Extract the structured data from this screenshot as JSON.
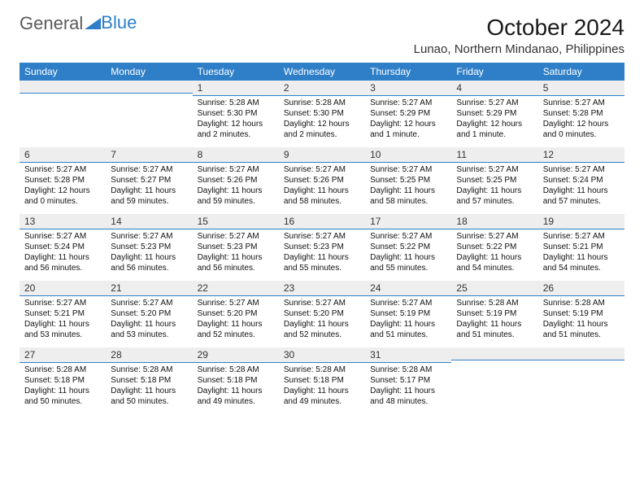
{
  "brand": {
    "name1": "General",
    "name2": "Blue"
  },
  "title": "October 2024",
  "location": "Lunao, Northern Mindanao, Philippines",
  "colors": {
    "header_bg": "#2f7fc8",
    "header_fg": "#ffffff",
    "daynum_bg": "#eeeeee",
    "rule": "#2f7fc8"
  },
  "day_labels": [
    "Sunday",
    "Monday",
    "Tuesday",
    "Wednesday",
    "Thursday",
    "Friday",
    "Saturday"
  ],
  "weeks": [
    [
      {
        "n": "",
        "sr": "",
        "ss": "",
        "dl": ""
      },
      {
        "n": "",
        "sr": "",
        "ss": "",
        "dl": ""
      },
      {
        "n": "1",
        "sr": "Sunrise: 5:28 AM",
        "ss": "Sunset: 5:30 PM",
        "dl": "Daylight: 12 hours and 2 minutes."
      },
      {
        "n": "2",
        "sr": "Sunrise: 5:28 AM",
        "ss": "Sunset: 5:30 PM",
        "dl": "Daylight: 12 hours and 2 minutes."
      },
      {
        "n": "3",
        "sr": "Sunrise: 5:27 AM",
        "ss": "Sunset: 5:29 PM",
        "dl": "Daylight: 12 hours and 1 minute."
      },
      {
        "n": "4",
        "sr": "Sunrise: 5:27 AM",
        "ss": "Sunset: 5:29 PM",
        "dl": "Daylight: 12 hours and 1 minute."
      },
      {
        "n": "5",
        "sr": "Sunrise: 5:27 AM",
        "ss": "Sunset: 5:28 PM",
        "dl": "Daylight: 12 hours and 0 minutes."
      }
    ],
    [
      {
        "n": "6",
        "sr": "Sunrise: 5:27 AM",
        "ss": "Sunset: 5:28 PM",
        "dl": "Daylight: 12 hours and 0 minutes."
      },
      {
        "n": "7",
        "sr": "Sunrise: 5:27 AM",
        "ss": "Sunset: 5:27 PM",
        "dl": "Daylight: 11 hours and 59 minutes."
      },
      {
        "n": "8",
        "sr": "Sunrise: 5:27 AM",
        "ss": "Sunset: 5:26 PM",
        "dl": "Daylight: 11 hours and 59 minutes."
      },
      {
        "n": "9",
        "sr": "Sunrise: 5:27 AM",
        "ss": "Sunset: 5:26 PM",
        "dl": "Daylight: 11 hours and 58 minutes."
      },
      {
        "n": "10",
        "sr": "Sunrise: 5:27 AM",
        "ss": "Sunset: 5:25 PM",
        "dl": "Daylight: 11 hours and 58 minutes."
      },
      {
        "n": "11",
        "sr": "Sunrise: 5:27 AM",
        "ss": "Sunset: 5:25 PM",
        "dl": "Daylight: 11 hours and 57 minutes."
      },
      {
        "n": "12",
        "sr": "Sunrise: 5:27 AM",
        "ss": "Sunset: 5:24 PM",
        "dl": "Daylight: 11 hours and 57 minutes."
      }
    ],
    [
      {
        "n": "13",
        "sr": "Sunrise: 5:27 AM",
        "ss": "Sunset: 5:24 PM",
        "dl": "Daylight: 11 hours and 56 minutes."
      },
      {
        "n": "14",
        "sr": "Sunrise: 5:27 AM",
        "ss": "Sunset: 5:23 PM",
        "dl": "Daylight: 11 hours and 56 minutes."
      },
      {
        "n": "15",
        "sr": "Sunrise: 5:27 AM",
        "ss": "Sunset: 5:23 PM",
        "dl": "Daylight: 11 hours and 56 minutes."
      },
      {
        "n": "16",
        "sr": "Sunrise: 5:27 AM",
        "ss": "Sunset: 5:23 PM",
        "dl": "Daylight: 11 hours and 55 minutes."
      },
      {
        "n": "17",
        "sr": "Sunrise: 5:27 AM",
        "ss": "Sunset: 5:22 PM",
        "dl": "Daylight: 11 hours and 55 minutes."
      },
      {
        "n": "18",
        "sr": "Sunrise: 5:27 AM",
        "ss": "Sunset: 5:22 PM",
        "dl": "Daylight: 11 hours and 54 minutes."
      },
      {
        "n": "19",
        "sr": "Sunrise: 5:27 AM",
        "ss": "Sunset: 5:21 PM",
        "dl": "Daylight: 11 hours and 54 minutes."
      }
    ],
    [
      {
        "n": "20",
        "sr": "Sunrise: 5:27 AM",
        "ss": "Sunset: 5:21 PM",
        "dl": "Daylight: 11 hours and 53 minutes."
      },
      {
        "n": "21",
        "sr": "Sunrise: 5:27 AM",
        "ss": "Sunset: 5:20 PM",
        "dl": "Daylight: 11 hours and 53 minutes."
      },
      {
        "n": "22",
        "sr": "Sunrise: 5:27 AM",
        "ss": "Sunset: 5:20 PM",
        "dl": "Daylight: 11 hours and 52 minutes."
      },
      {
        "n": "23",
        "sr": "Sunrise: 5:27 AM",
        "ss": "Sunset: 5:20 PM",
        "dl": "Daylight: 11 hours and 52 minutes."
      },
      {
        "n": "24",
        "sr": "Sunrise: 5:27 AM",
        "ss": "Sunset: 5:19 PM",
        "dl": "Daylight: 11 hours and 51 minutes."
      },
      {
        "n": "25",
        "sr": "Sunrise: 5:28 AM",
        "ss": "Sunset: 5:19 PM",
        "dl": "Daylight: 11 hours and 51 minutes."
      },
      {
        "n": "26",
        "sr": "Sunrise: 5:28 AM",
        "ss": "Sunset: 5:19 PM",
        "dl": "Daylight: 11 hours and 51 minutes."
      }
    ],
    [
      {
        "n": "27",
        "sr": "Sunrise: 5:28 AM",
        "ss": "Sunset: 5:18 PM",
        "dl": "Daylight: 11 hours and 50 minutes."
      },
      {
        "n": "28",
        "sr": "Sunrise: 5:28 AM",
        "ss": "Sunset: 5:18 PM",
        "dl": "Daylight: 11 hours and 50 minutes."
      },
      {
        "n": "29",
        "sr": "Sunrise: 5:28 AM",
        "ss": "Sunset: 5:18 PM",
        "dl": "Daylight: 11 hours and 49 minutes."
      },
      {
        "n": "30",
        "sr": "Sunrise: 5:28 AM",
        "ss": "Sunset: 5:18 PM",
        "dl": "Daylight: 11 hours and 49 minutes."
      },
      {
        "n": "31",
        "sr": "Sunrise: 5:28 AM",
        "ss": "Sunset: 5:17 PM",
        "dl": "Daylight: 11 hours and 48 minutes."
      },
      {
        "n": "",
        "sr": "",
        "ss": "",
        "dl": ""
      },
      {
        "n": "",
        "sr": "",
        "ss": "",
        "dl": ""
      }
    ]
  ]
}
